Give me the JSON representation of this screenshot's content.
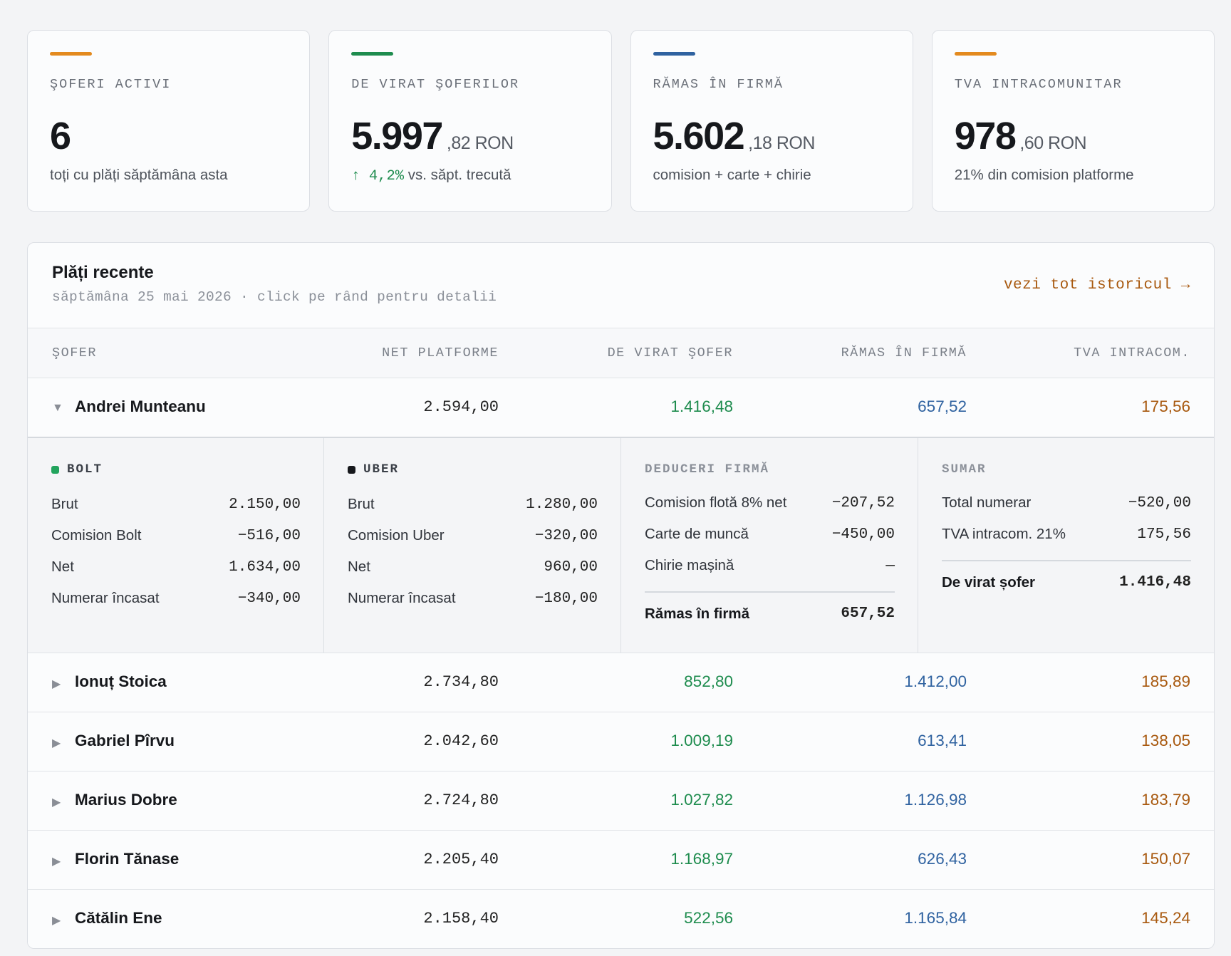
{
  "colors": {
    "accent_orange": "#e38a1f",
    "accent_green": "#1e8c4e",
    "accent_blue": "#2f62a0",
    "positive": "#1e8c4e",
    "negative": "#c0392b",
    "link": "#a8590f",
    "bolt": "#22a45d",
    "uber": "#16181c"
  },
  "cards": [
    {
      "label": "ŞOFERI ACTIVI",
      "value": "6",
      "decimals": "",
      "sub": "toți cu plăți săptămâna asta",
      "accent": "#e38a1f"
    },
    {
      "label": "DE VIRAT ŞOFERILOR",
      "value": "5.997",
      "decimals": ",82 RON",
      "trend_icon": "arrow-up-icon",
      "trend_value": "↑ 4,2%",
      "sub": " vs. săpt. trecută",
      "accent": "#1e8c4e"
    },
    {
      "label": "RĂMAS ÎN FIRMĂ",
      "value": "5.602",
      "decimals": ",18 RON",
      "sub": "comision + carte + chirie",
      "accent": "#2f62a0"
    },
    {
      "label": "TVA INTRACOMUNITAR",
      "value": "978",
      "decimals": ",60 RON",
      "sub": "21% din comision platforme",
      "accent": "#e38a1f"
    }
  ],
  "panel": {
    "title": "Plăți recente",
    "subtitle": "săptămâna 25 mai 2026 · click pe rând pentru detalii",
    "link": "vezi tot istoricul →"
  },
  "table": {
    "headers": {
      "name": "ŞOFER",
      "net": "NET PLATFORME",
      "virat": "DE VIRAT ŞOFER",
      "firma": "RĂMAS ÎN FIRMĂ",
      "tva": "TVA INTRACOM."
    },
    "rows": [
      {
        "name": "Andrei Munteanu",
        "net": "2.594,00",
        "virat": "1.416,48",
        "firma": "657,52",
        "tva": "175,56",
        "expanded": true
      },
      {
        "name": "Ionuț Stoica",
        "net": "2.734,80",
        "virat": "852,80",
        "firma": "1.412,00",
        "tva": "185,89",
        "expanded": false
      },
      {
        "name": "Gabriel Pîrvu",
        "net": "2.042,60",
        "virat": "1.009,19",
        "firma": "613,41",
        "tva": "138,05",
        "expanded": false
      },
      {
        "name": "Marius Dobre",
        "net": "2.724,80",
        "virat": "1.027,82",
        "firma": "1.126,98",
        "tva": "183,79",
        "expanded": false
      },
      {
        "name": "Florin Tănase",
        "net": "2.205,40",
        "virat": "1.168,97",
        "firma": "626,43",
        "tva": "150,07",
        "expanded": false
      },
      {
        "name": "Cătălin Ene",
        "net": "2.158,40",
        "virat": "522,56",
        "firma": "1.165,84",
        "tva": "145,24",
        "expanded": false
      }
    ]
  },
  "detail": {
    "bolt": {
      "title": "BOLT",
      "lines": [
        {
          "label": "Brut",
          "value": "2.150,00"
        },
        {
          "label": "Comision Bolt",
          "value": "−516,00"
        },
        {
          "label": "Net",
          "value": "1.634,00"
        },
        {
          "label": "Numerar încasat",
          "value": "−340,00"
        }
      ]
    },
    "uber": {
      "title": "UBER",
      "lines": [
        {
          "label": "Brut",
          "value": "1.280,00"
        },
        {
          "label": "Comision Uber",
          "value": "−320,00"
        },
        {
          "label": "Net",
          "value": "960,00"
        },
        {
          "label": "Numerar încasat",
          "value": "−180,00"
        }
      ]
    },
    "deduceri": {
      "title": "DEDUCERI FIRMĂ",
      "lines": [
        {
          "label": "Comision flotă 8% net",
          "value": "−207,52"
        },
        {
          "label": "Carte de muncă",
          "value": "−450,00"
        },
        {
          "label": "Chirie mașină",
          "value": "—"
        }
      ],
      "total": {
        "label": "Rămas în firmă",
        "value": "657,52"
      }
    },
    "sumar": {
      "title": "SUMAR",
      "lines": [
        {
          "label": "Total numerar",
          "value": "−520,00"
        },
        {
          "label": "TVA intracom. 21%",
          "value": "175,56"
        }
      ],
      "total": {
        "label": "De virat șofer",
        "value": "1.416,48"
      }
    }
  }
}
